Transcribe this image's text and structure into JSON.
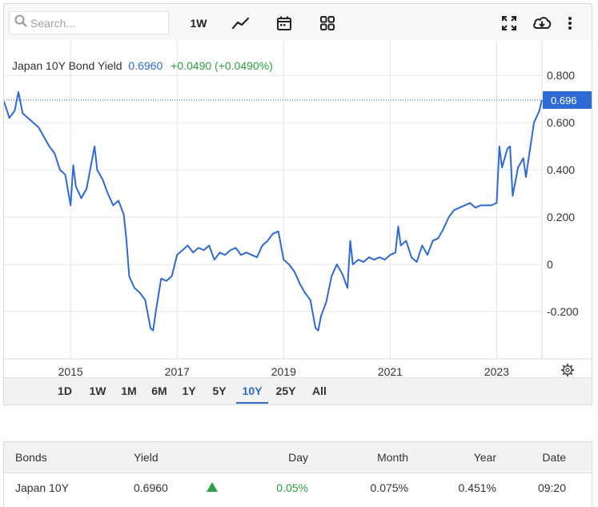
{
  "toolbar": {
    "search_placeholder": "Search...",
    "interval_label": "1W",
    "icons": [
      "search-icon",
      "line-chart-icon",
      "calendar-icon",
      "grid-icon",
      "fullscreen-icon",
      "download-cloud-icon",
      "more-vertical-icon"
    ]
  },
  "legend": {
    "name": "Japan 10Y Bond Yield",
    "value": "0.6960",
    "change": "+0.0490 (+0.0490%)"
  },
  "colors": {
    "line": "#2e6ad6",
    "price_tag": "#2e6ad6",
    "positive": "#2ea043",
    "grid": "#e6e6e6"
  },
  "chart_data": {
    "type": "line",
    "title": "Japan 10Y Bond Yield",
    "xlabel": "",
    "ylabel": "",
    "x_ticks": [
      "2015",
      "2017",
      "2019",
      "2021",
      "2023"
    ],
    "y_ticks": [
      "0.800",
      "0.600",
      "0.400",
      "0.200",
      "0",
      "-0.200"
    ],
    "y_tick_values": [
      0.8,
      0.6,
      0.4,
      0.2,
      0,
      -0.2
    ],
    "ylim": [
      -0.4,
      0.95
    ],
    "xlim": [
      2013.75,
      2023.85
    ],
    "grid": true,
    "last_value_label": "0.696",
    "last_value": 0.696,
    "series": [
      {
        "x": [
          2013.75,
          2013.85,
          2013.95,
          2014.02,
          2014.1,
          2014.2,
          2014.3,
          2014.4,
          2014.5,
          2014.6,
          2014.7,
          2014.8,
          2014.9,
          2015.0,
          2015.05,
          2015.1,
          2015.2,
          2015.3,
          2015.4,
          2015.45,
          2015.5,
          2015.6,
          2015.7,
          2015.8,
          2015.9,
          2016.0,
          2016.05,
          2016.1,
          2016.2,
          2016.3,
          2016.4,
          2016.5,
          2016.55,
          2016.6,
          2016.7,
          2016.8,
          2016.9,
          2017.0,
          2017.1,
          2017.2,
          2017.3,
          2017.4,
          2017.5,
          2017.6,
          2017.7,
          2017.8,
          2017.9,
          2018.0,
          2018.1,
          2018.2,
          2018.3,
          2018.4,
          2018.5,
          2018.6,
          2018.7,
          2018.8,
          2018.9,
          2019.0,
          2019.1,
          2019.2,
          2019.3,
          2019.4,
          2019.5,
          2019.6,
          2019.65,
          2019.7,
          2019.8,
          2019.9,
          2020.0,
          2020.1,
          2020.2,
          2020.25,
          2020.3,
          2020.4,
          2020.5,
          2020.6,
          2020.7,
          2020.8,
          2020.9,
          2021.0,
          2021.1,
          2021.15,
          2021.2,
          2021.3,
          2021.4,
          2021.5,
          2021.6,
          2021.7,
          2021.8,
          2021.9,
          2022.0,
          2022.1,
          2022.2,
          2022.3,
          2022.4,
          2022.5,
          2022.6,
          2022.7,
          2022.8,
          2022.9,
          2023.0,
          2023.05,
          2023.1,
          2023.2,
          2023.25,
          2023.3,
          2023.4,
          2023.5,
          2023.55,
          2023.6,
          2023.7,
          2023.8,
          2023.85
        ],
        "values": [
          0.69,
          0.62,
          0.65,
          0.73,
          0.64,
          0.62,
          0.6,
          0.58,
          0.54,
          0.5,
          0.47,
          0.4,
          0.38,
          0.25,
          0.42,
          0.33,
          0.28,
          0.32,
          0.44,
          0.5,
          0.4,
          0.36,
          0.3,
          0.25,
          0.27,
          0.21,
          0.1,
          -0.05,
          -0.1,
          -0.12,
          -0.15,
          -0.27,
          -0.28,
          -0.2,
          -0.06,
          -0.07,
          -0.05,
          0.04,
          0.06,
          0.08,
          0.05,
          0.07,
          0.06,
          0.08,
          0.02,
          0.05,
          0.04,
          0.06,
          0.07,
          0.04,
          0.05,
          0.04,
          0.03,
          0.08,
          0.1,
          0.13,
          0.14,
          0.02,
          0.0,
          -0.03,
          -0.08,
          -0.12,
          -0.15,
          -0.27,
          -0.28,
          -0.22,
          -0.16,
          -0.05,
          0.0,
          -0.04,
          -0.1,
          0.1,
          0.0,
          0.02,
          0.01,
          0.03,
          0.02,
          0.03,
          0.02,
          0.04,
          0.05,
          0.16,
          0.08,
          0.1,
          0.03,
          0.01,
          0.08,
          0.04,
          0.1,
          0.11,
          0.15,
          0.2,
          0.23,
          0.24,
          0.25,
          0.26,
          0.24,
          0.25,
          0.25,
          0.25,
          0.26,
          0.5,
          0.41,
          0.49,
          0.5,
          0.29,
          0.41,
          0.45,
          0.37,
          0.45,
          0.6,
          0.65,
          0.696
        ]
      }
    ]
  },
  "range_buttons": [
    "1D",
    "1W",
    "1M",
    "6M",
    "1Y",
    "5Y",
    "10Y",
    "25Y",
    "All"
  ],
  "active_range": "10Y",
  "table": {
    "headers": {
      "bonds": "Bonds",
      "yield": "Yield",
      "day": "Day",
      "month": "Month",
      "year": "Year",
      "date": "Date"
    },
    "rows": [
      {
        "bond": "Japan 10Y",
        "yield": "0.6960",
        "direction": "up",
        "day": "0.05%",
        "month": "0.075%",
        "year": "0.451%",
        "date": "09:20"
      }
    ]
  }
}
